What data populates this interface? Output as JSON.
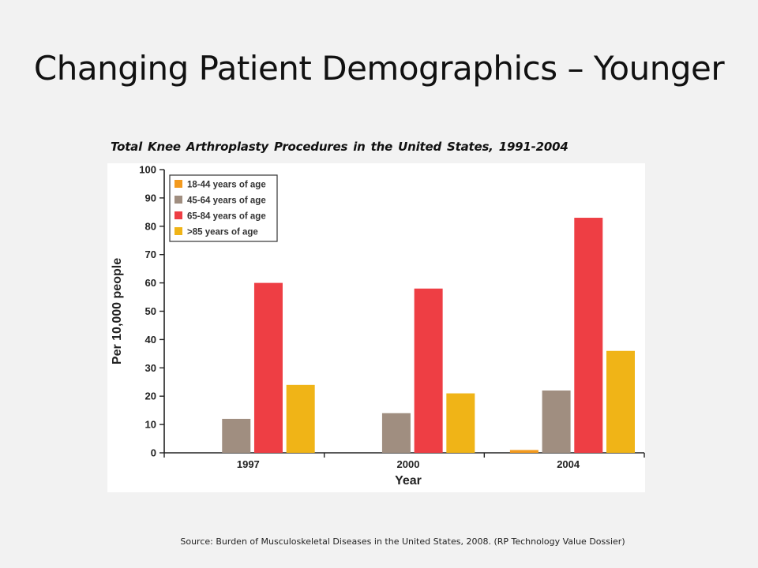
{
  "slide": {
    "title": "Changing Patient Demographics – Younger",
    "source": "Source: Burden of Musculoskeletal Diseases in the United States, 2008. (RP Technology Value Dossier)"
  },
  "chart_data": {
    "type": "bar",
    "title": "Total Knee Arthroplasty Procedures in the United States, 1991-2004",
    "xlabel": "Year",
    "ylabel": "Per 10,000 people",
    "categories": [
      "1997",
      "2000",
      "2004"
    ],
    "ylim": [
      0,
      100
    ],
    "yticks": [
      "0",
      "10",
      "20",
      "30",
      "40",
      "50",
      "60",
      "70",
      "80",
      "90",
      "100"
    ],
    "legend_position": "top-left",
    "series": [
      {
        "name": "18-44 years of age",
        "color": "#f39a1e",
        "values": [
          0,
          0,
          1
        ]
      },
      {
        "name": "45-64 years of age",
        "color": "#a08e80",
        "values": [
          12,
          14,
          22
        ]
      },
      {
        "name": "65-84 years of age",
        "color": "#ee3e44",
        "values": [
          60,
          58,
          83
        ]
      },
      {
        "name": ">85 years of age",
        "color": "#f0b417",
        "values": [
          24,
          21,
          36
        ]
      }
    ]
  }
}
